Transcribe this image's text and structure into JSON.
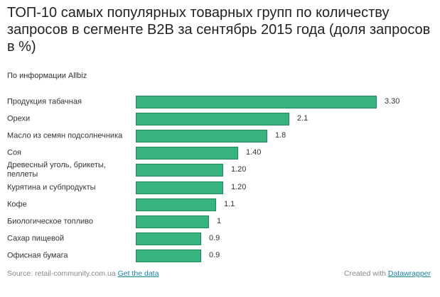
{
  "chart_data": {
    "type": "bar",
    "title": "ТОП-10 самых популярных товарных групп по количеству запросов в сегменте B2B за сентябрь 2015 года (доля запросов в %)",
    "subtitle": "По информации Allbiz",
    "categories": [
      "Продукция табачная",
      "Орехи",
      "Масло из семян подсолнечника",
      "Соя",
      "Древесный уголь, брикеты, пеллеты",
      "Курятина и субпродукты",
      "Кофе",
      "Биологическое топливо",
      "Сахар пищевой",
      "Офисная бумага"
    ],
    "values": [
      3.3,
      2.1,
      1.8,
      1.4,
      1.2,
      1.2,
      1.1,
      1,
      0.9,
      0.9
    ],
    "value_labels": [
      "3.30",
      "2.1",
      "1.8",
      "1.40",
      "1.20",
      "1.20",
      "1.1",
      "1",
      "0.9",
      "0.9"
    ],
    "xlim": [
      0,
      3.3
    ],
    "bar_color": "#36b37e",
    "grid": false
  },
  "footer": {
    "source": "Source: retail-community.com.ua",
    "get_data": "Get the data",
    "created": "Created with",
    "datawrapper": "Datawrapper"
  }
}
